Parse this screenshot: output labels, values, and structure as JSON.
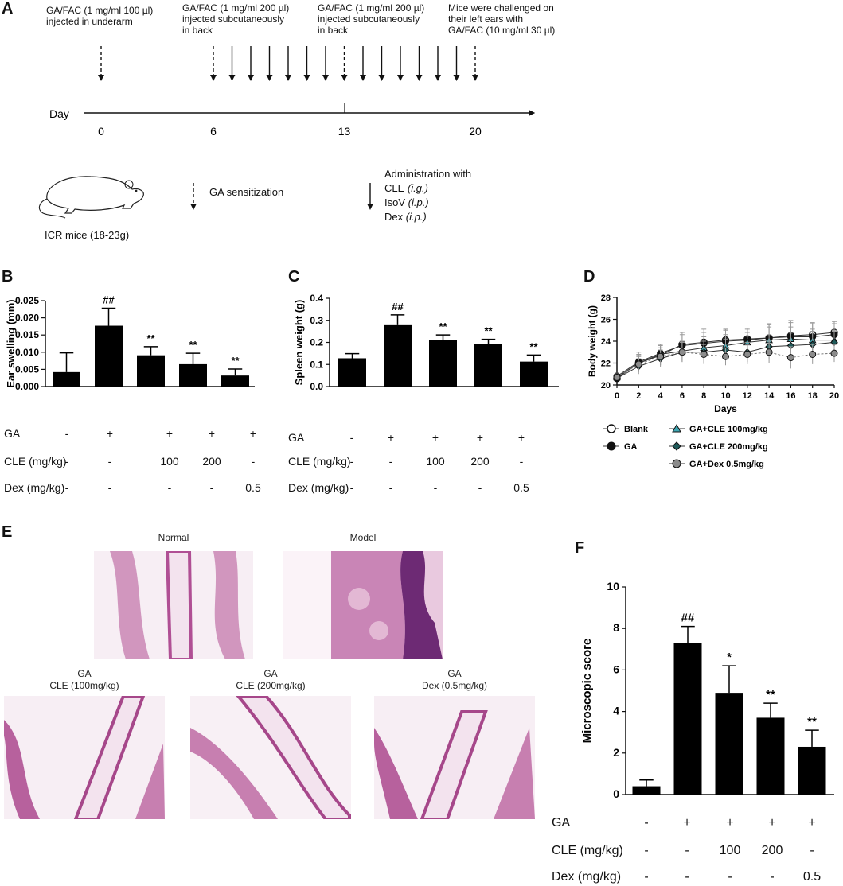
{
  "panels": {
    "A": "A",
    "B": "B",
    "C": "C",
    "D": "D",
    "E": "E",
    "F": "F"
  },
  "timeline": {
    "day_label": "Day",
    "days": [
      {
        "label": "0",
        "day": 0
      },
      {
        "label": "6",
        "day": 6
      },
      {
        "label": "13",
        "day": 13
      },
      {
        "label": "20",
        "day": 20
      }
    ],
    "notes": [
      "GA/FAC  (1 mg/ml 100 µl)\ninjected in underarm",
      "GA/FAC (1 mg/ml 200 µl)\ninjected subcutaneously\nin back",
      "GA/FAC (1 mg/ml 200 µl)\ninjected subcutaneously\nin back",
      "Mice were challenged  on\ntheir left ears with\nGA/FAC  (10 mg/ml  30 µl)"
    ],
    "sensitization_days": [
      0,
      6,
      13,
      20
    ],
    "administration_days": [
      7,
      8,
      9,
      10,
      11,
      12,
      14,
      15,
      16,
      17,
      18,
      19
    ],
    "mouse_label": "ICR mice (18-23g)",
    "legend_sensitization": "GA sensitization",
    "legend_admin_title": "Administration with",
    "legend_admin_items": [
      {
        "name": "CLE",
        "route": "(i.g.)"
      },
      {
        "name": "IsoV",
        "route": "(i.p.)"
      },
      {
        "name": "Dex",
        "route": "(i.p.)"
      }
    ]
  },
  "conditions": {
    "row_labels": [
      "GA",
      "CLE (mg/kg)",
      "Dex (mg/kg)"
    ],
    "ga": [
      "-",
      "+",
      "+",
      "+",
      "+"
    ],
    "cle": [
      "-",
      "-",
      "100",
      "200",
      "-"
    ],
    "dex": [
      "-",
      "-",
      "-",
      "-",
      "0.5"
    ]
  },
  "chart_data": [
    {
      "panel": "B",
      "type": "bar",
      "ylabel": "Ear swelling (mm)",
      "ylim": [
        0,
        0.025
      ],
      "yticks": [
        "0.000",
        "0.005",
        "0.010",
        "0.015",
        "0.020",
        "0.025"
      ],
      "values": [
        0.0042,
        0.0177,
        0.0091,
        0.0065,
        0.0032
      ],
      "errors": [
        0.0056,
        0.0051,
        0.0025,
        0.0032,
        0.0019
      ],
      "annotations": [
        "",
        "##",
        "**",
        "**",
        "**"
      ]
    },
    {
      "panel": "C",
      "type": "bar",
      "ylabel": "Spleen weight (g)",
      "ylim": [
        0,
        0.4
      ],
      "yticks": [
        "0.0",
        "0.1",
        "0.2",
        "0.3",
        "0.4"
      ],
      "values": [
        0.128,
        0.278,
        0.21,
        0.193,
        0.113
      ],
      "errors": [
        0.021,
        0.047,
        0.024,
        0.021,
        0.03
      ],
      "annotations": [
        "",
        "##",
        "**",
        "**",
        "**"
      ]
    },
    {
      "panel": "D",
      "type": "line",
      "xlabel": "Days",
      "ylabel": "Body weight (g)",
      "xlim": [
        0,
        20
      ],
      "ylim": [
        20,
        28
      ],
      "x": [
        0,
        2,
        4,
        6,
        8,
        10,
        12,
        14,
        16,
        18,
        20
      ],
      "yticks": [
        "20",
        "22",
        "24",
        "26",
        "28"
      ],
      "series": [
        {
          "name": "Blank",
          "marker": "circle-open",
          "color": "#ffffff",
          "values": [
            20.6,
            22.0,
            22.7,
            23.7,
            23.9,
            24.1,
            24.2,
            24.3,
            24.5,
            24.6,
            24.8
          ],
          "errors": [
            0.3,
            0.8,
            0.9,
            1.1,
            1.2,
            1.0,
            0.9,
            1.2,
            1.4,
            1.1,
            1.0
          ]
        },
        {
          "name": "GA",
          "marker": "circle-filled",
          "color": "#111111",
          "values": [
            20.8,
            22.1,
            22.9,
            23.6,
            23.8,
            24.0,
            24.1,
            24.3,
            24.4,
            24.4,
            24.6
          ],
          "errors": [
            0.3,
            0.9,
            0.8,
            1.0,
            1.0,
            1.0,
            1.1,
            1.3,
            1.3,
            1.2,
            1.0
          ]
        },
        {
          "name": "GA+CLE 100mg/kg",
          "marker": "triangle",
          "color": "#3ea6b2",
          "values": [
            20.7,
            22.0,
            22.8,
            23.1,
            23.4,
            23.6,
            23.9,
            24.1,
            24.2,
            24.1,
            24.1
          ],
          "errors": [
            0.3,
            0.7,
            0.8,
            0.9,
            1.0,
            1.0,
            0.9,
            1.2,
            1.1,
            1.0,
            0.9
          ]
        },
        {
          "name": "GA+CLE 200mg/kg",
          "marker": "diamond",
          "color": "#1f5a5a",
          "values": [
            20.6,
            21.7,
            22.4,
            23.0,
            23.0,
            23.2,
            23.0,
            23.5,
            23.6,
            23.7,
            23.9
          ],
          "errors": [
            0.3,
            0.7,
            0.8,
            0.9,
            1.0,
            1.0,
            0.9,
            1.1,
            1.2,
            1.2,
            1.0
          ]
        },
        {
          "name": "GA+Dex 0.5mg/kg",
          "marker": "circle-gray",
          "color": "#8c8c8c",
          "values": [
            20.7,
            21.9,
            22.6,
            23.0,
            22.8,
            22.6,
            22.8,
            23.0,
            22.5,
            22.8,
            22.9
          ],
          "errors": [
            0.3,
            0.7,
            0.8,
            0.9,
            0.9,
            0.8,
            0.9,
            1.0,
            1.0,
            0.9,
            0.8
          ]
        }
      ]
    },
    {
      "panel": "F",
      "type": "bar",
      "ylabel": "Microscopic score",
      "ylim": [
        0,
        10
      ],
      "yticks": [
        "0",
        "2",
        "4",
        "6",
        "8",
        "10"
      ],
      "values": [
        0.4,
        7.3,
        4.9,
        3.7,
        2.3
      ],
      "errors": [
        0.3,
        0.8,
        1.3,
        0.7,
        0.8
      ],
      "annotations": [
        "",
        "##",
        "*",
        "**",
        "**"
      ]
    }
  ],
  "histology": [
    {
      "caption": "Normal"
    },
    {
      "caption": "Model"
    },
    {
      "caption": "GA\nCLE (100mg/kg)"
    },
    {
      "caption": "GA\nCLE (200mg/kg)"
    },
    {
      "caption": "GA\nDex (0.5mg/kg)"
    }
  ]
}
